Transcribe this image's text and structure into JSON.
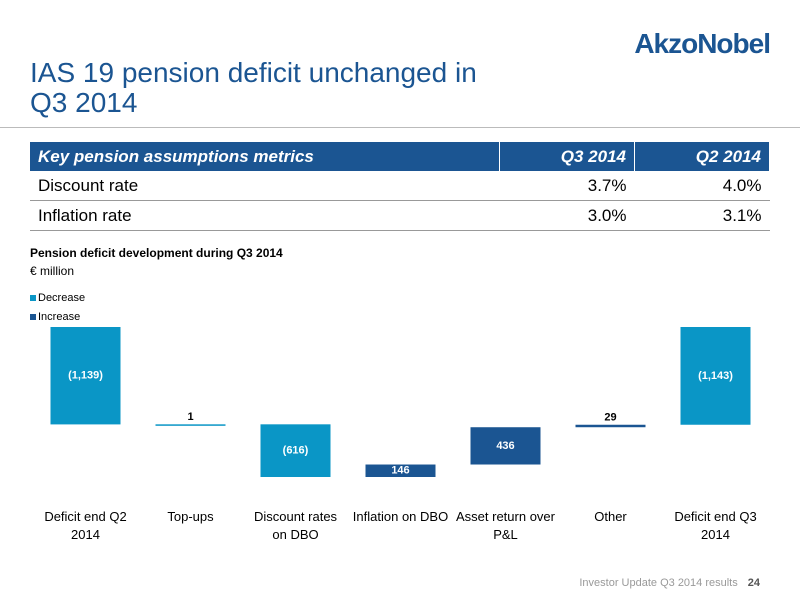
{
  "header": {
    "title": "IAS 19 pension deficit unchanged in Q3 2014",
    "logo": "AkzoNobel"
  },
  "table": {
    "header": [
      "Key pension assumptions metrics",
      "Q3 2014",
      "Q2 2014"
    ],
    "rows": [
      [
        "Discount rate",
        "3.7%",
        "4.0%"
      ],
      [
        "Inflation rate",
        "3.0%",
        "3.1%"
      ]
    ]
  },
  "chart_data": {
    "type": "waterfall",
    "title": "Pension deficit development during Q3 2014",
    "subtitle": "€ million",
    "categories": [
      "Deficit end Q2 2014",
      "Top-ups",
      "Discount rates on DBO",
      "Inflation on DBO",
      "Asset return over P&L",
      "Other",
      "Deficit end Q3 2014"
    ],
    "values": [
      -1139,
      1,
      -616,
      146,
      436,
      29,
      -1143
    ],
    "value_labels": [
      "(1,139)",
      "1",
      "(616)",
      "146",
      "436",
      "29",
      "(1,143)"
    ],
    "series": [
      {
        "name": "Decrease",
        "color": "#0a96c6"
      },
      {
        "name": "Increase",
        "color": "#1b5592"
      }
    ],
    "bar_colors": [
      "#0a96c6",
      "#0a96c6",
      "#0a96c6",
      "#1b5592",
      "#1b5592",
      "#1b5592",
      "#0a96c6"
    ]
  },
  "footer": {
    "text": "Investor Update Q3 2014 results",
    "page": "24"
  }
}
